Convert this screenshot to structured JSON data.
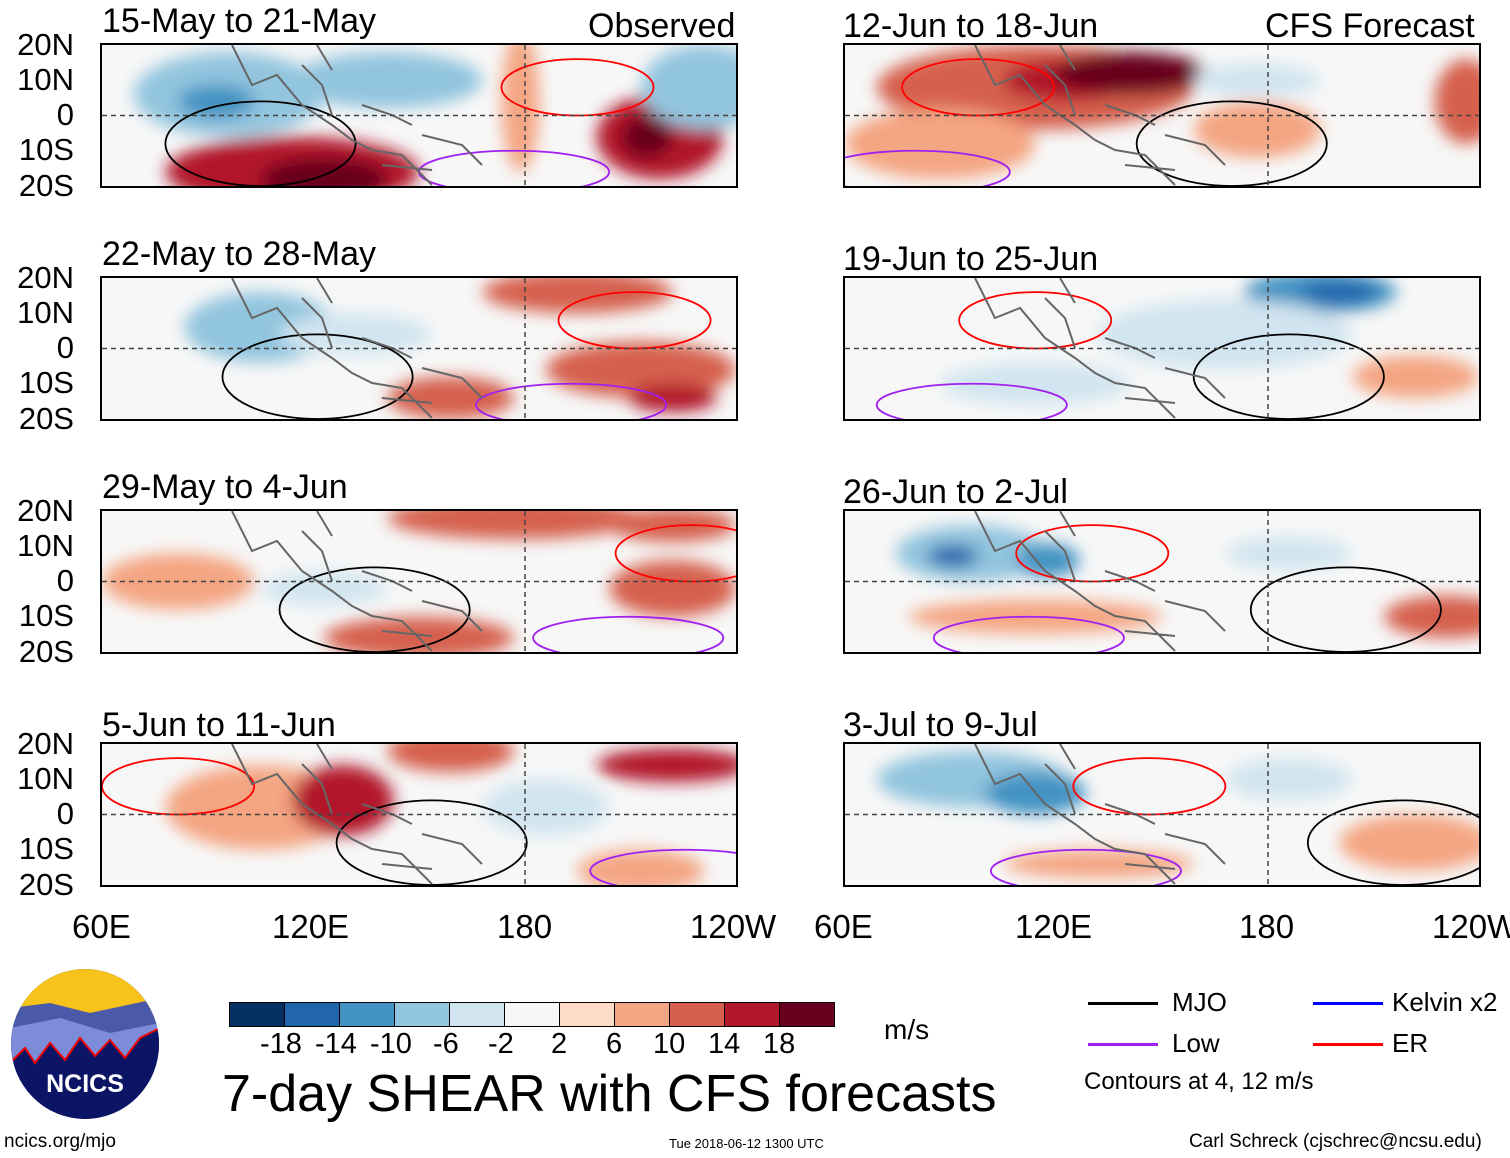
{
  "chart_data": {
    "type": "heatmap",
    "title": "7-day SHEAR with CFS forecasts",
    "units": "m/s",
    "columns": [
      {
        "label": "Observed",
        "panels": [
          "15-May to 21-May",
          "22-May to 28-May",
          "29-May to 4-Jun",
          "5-Jun to 11-Jun"
        ]
      },
      {
        "label": "CFS Forecast",
        "panels": [
          "12-Jun to 18-Jun",
          "19-Jun to 25-Jun",
          "26-Jun to 2-Jul",
          "3-Jul to 9-Jul"
        ]
      }
    ],
    "lat_ticks": [
      "20N",
      "10N",
      "0",
      "10S",
      "20S"
    ],
    "lon_ticks": [
      "60E",
      "120E",
      "180",
      "120W"
    ],
    "colorbar": {
      "levels": [
        "-18",
        "-14",
        "-10",
        "-6",
        "-2",
        "2",
        "6",
        "10",
        "14",
        "18"
      ],
      "colors": [
        "#053061",
        "#2166ac",
        "#4393c3",
        "#92c5de",
        "#d1e5f0",
        "#f7f7f7",
        "#fddbc7",
        "#f4a582",
        "#d6604d",
        "#b2182b",
        "#67001f"
      ]
    },
    "legend": [
      {
        "label": "MJO",
        "color": "#000000"
      },
      {
        "label": "Kelvin x2",
        "color": "#0000ff"
      },
      {
        "label": "Low",
        "color": "#a020f0"
      },
      {
        "label": "ER",
        "color": "#ff0000"
      }
    ],
    "contour_note": "Contours at 4, 12 m/s"
  },
  "footer": {
    "left": "ncics.org/mjo",
    "center": "Tue 2018-06-12 1300 UTC",
    "right": "Carl Schreck (cjschrec@ncsu.edu)"
  },
  "logo": {
    "text": "NCICS"
  }
}
